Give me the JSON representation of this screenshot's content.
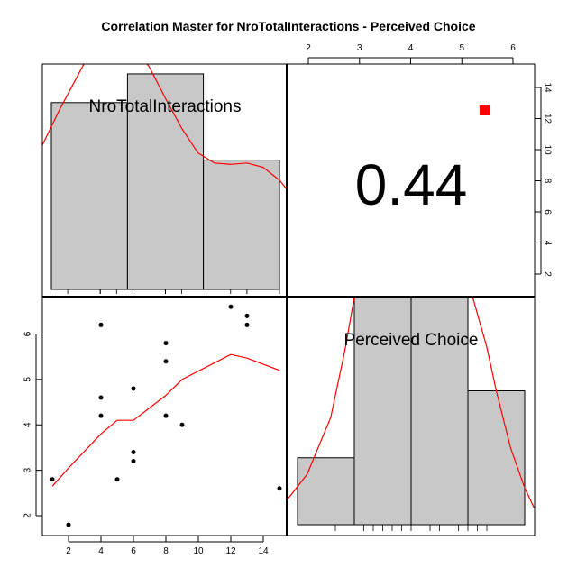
{
  "title": "Correlation Master for NroTotalInteractions - Perceived Choice",
  "colors": {
    "bar_fill": "#c8c8c8",
    "density": "#ff0000",
    "sig_marker": "#ff0000",
    "points": "#000000"
  },
  "variables": [
    "NroTotalInteractions",
    "Perceived Choice"
  ],
  "chart_data": [
    {
      "panel": "top-left",
      "type": "bar",
      "label": "NroTotalInteractions",
      "bins": [
        {
          "start": 1,
          "end": 5.67,
          "count": 13
        },
        {
          "start": 5.67,
          "end": 10.33,
          "count": 15
        },
        {
          "start": 10.33,
          "end": 15,
          "count": 9
        }
      ],
      "density_curve_x": [
        -1.5,
        0,
        1.5,
        3,
        4,
        5,
        6,
        7,
        8,
        9,
        10,
        11,
        12,
        13,
        14,
        15,
        16,
        17
      ],
      "density_curve_y": [
        6,
        9,
        12.5,
        15.7,
        17,
        17.5,
        17,
        15.5,
        13.3,
        11.2,
        9.5,
        8.8,
        8.7,
        8.8,
        8.5,
        7.6,
        6.2,
        4.5
      ],
      "rug": [
        2,
        4,
        4,
        4,
        5,
        6,
        6,
        8,
        8,
        8,
        9,
        12,
        13,
        13,
        15
      ],
      "ylim": [
        0,
        16
      ]
    },
    {
      "panel": "top-right",
      "type": "table",
      "correlation": "0.44",
      "significance_marker": "square",
      "top_axis_ticks": [
        "2",
        "3",
        "4",
        "5",
        "6"
      ],
      "right_axis_ticks": [
        "2",
        "4",
        "6",
        "8",
        "10",
        "12",
        "14"
      ]
    },
    {
      "panel": "bottom-left",
      "type": "scatter",
      "xlabel": "NroTotalInteractions",
      "ylabel": "Perceived Choice",
      "points": [
        {
          "x": 1,
          "y": 2.8
        },
        {
          "x": 2,
          "y": 1.8
        },
        {
          "x": 4,
          "y": 6.2
        },
        {
          "x": 4,
          "y": 4.6
        },
        {
          "x": 4,
          "y": 4.2
        },
        {
          "x": 5,
          "y": 2.8
        },
        {
          "x": 6,
          "y": 4.8
        },
        {
          "x": 6,
          "y": 3.4
        },
        {
          "x": 6,
          "y": 3.2
        },
        {
          "x": 8,
          "y": 5.8
        },
        {
          "x": 8,
          "y": 5.4
        },
        {
          "x": 8,
          "y": 4.2
        },
        {
          "x": 9,
          "y": 4.0
        },
        {
          "x": 12,
          "y": 6.6
        },
        {
          "x": 13,
          "y": 6.4
        },
        {
          "x": 13,
          "y": 6.2
        },
        {
          "x": 15,
          "y": 2.6
        }
      ],
      "smooth_line": [
        {
          "x": 1,
          "y": 2.65
        },
        {
          "x": 2,
          "y": 3.05
        },
        {
          "x": 4,
          "y": 3.8
        },
        {
          "x": 5,
          "y": 4.1
        },
        {
          "x": 6,
          "y": 4.1
        },
        {
          "x": 8,
          "y": 4.65
        },
        {
          "x": 9,
          "y": 5.0
        },
        {
          "x": 12,
          "y": 5.55
        },
        {
          "x": 13,
          "y": 5.47
        },
        {
          "x": 15,
          "y": 5.2
        }
      ],
      "xlim": [
        0,
        16
      ],
      "ylim": [
        1.6,
        6.8
      ],
      "x_ticks": [
        "2",
        "4",
        "6",
        "8",
        "10",
        "12",
        "14"
      ],
      "y_ticks": [
        "2",
        "3",
        "4",
        "5",
        "6"
      ]
    },
    {
      "panel": "bottom-right",
      "type": "bar",
      "label": "Perceived Choice",
      "bins": [
        {
          "start": 1.8,
          "end": 3.0,
          "count": 2
        },
        {
          "start": 3.0,
          "end": 4.2,
          "count": 7
        },
        {
          "start": 4.2,
          "end": 5.4,
          "count": 7
        },
        {
          "start": 5.4,
          "end": 6.6,
          "count": 4
        }
      ],
      "density_curve_x": [
        1.0,
        1.5,
        2.0,
        2.5,
        2.8,
        3.0,
        3.2,
        3.5,
        3.7,
        4.0,
        4.5,
        4.8,
        5.0,
        5.2,
        5.5,
        5.8,
        6.0,
        6.3,
        6.6,
        6.8
      ],
      "density_curve_y": [
        0.3,
        0.6,
        1.5,
        3.2,
        5.2,
        6.8,
        8.2,
        9.3,
        9.6,
        9.5,
        8.2,
        7.7,
        7.7,
        7.6,
        6.8,
        5.3,
        4.0,
        2.3,
        1.1,
        0.5
      ],
      "rug": [
        2.6,
        3.2,
        3.4,
        3.6,
        3.8,
        4.0,
        4.2,
        4.6,
        4.8,
        5.2,
        5.4,
        5.6,
        5.8
      ],
      "xlim": [
        1.1,
        6.8
      ],
      "ylim": [
        0,
        8
      ]
    }
  ]
}
